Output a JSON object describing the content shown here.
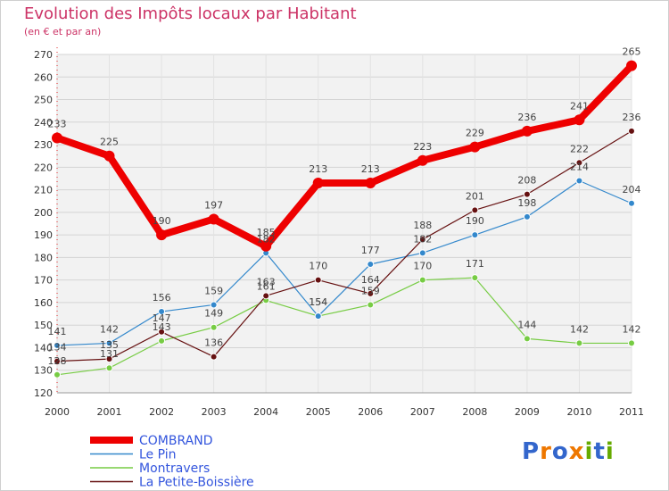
{
  "title": "Evolution des Impôts locaux par Habitant",
  "subtitle": "(en € et par an)",
  "chart_data": {
    "type": "line",
    "x": [
      "2000",
      "2001",
      "2002",
      "2003",
      "2004",
      "2005",
      "2006",
      "2007",
      "2008",
      "2009",
      "2010",
      "2011"
    ],
    "ylim": [
      120,
      270
    ],
    "yticks": [
      120,
      130,
      140,
      150,
      160,
      170,
      180,
      190,
      200,
      210,
      220,
      230,
      240,
      250,
      260,
      270
    ],
    "grid": true,
    "legend_position": "bottom-left",
    "series": [
      {
        "name": "COMBRAND",
        "color": "#ee0000",
        "values": [
          233,
          225,
          190,
          197,
          185,
          213,
          213,
          223,
          229,
          236,
          241,
          265
        ]
      },
      {
        "name": "Le Pin",
        "color": "#3388cc",
        "values": [
          141,
          142,
          156,
          159,
          182,
          154,
          177,
          182,
          190,
          198,
          214,
          204
        ]
      },
      {
        "name": "Montravers",
        "color": "#77cc44",
        "values": [
          128,
          131,
          143,
          149,
          161,
          154,
          159,
          170,
          171,
          144,
          142,
          142
        ]
      },
      {
        "name": "La Petite-Boissière",
        "color": "#661111",
        "values": [
          134,
          135,
          147,
          136,
          163,
          170,
          164,
          188,
          201,
          208,
          222,
          236
        ]
      }
    ]
  },
  "logo": {
    "letters": [
      "P",
      "r",
      "o",
      "x",
      "i",
      "t",
      "i"
    ],
    "colors": [
      "#3366cc",
      "#ee7700",
      "#3366cc",
      "#ee7700",
      "#66aa00",
      "#3366cc",
      "#66aa00"
    ]
  }
}
